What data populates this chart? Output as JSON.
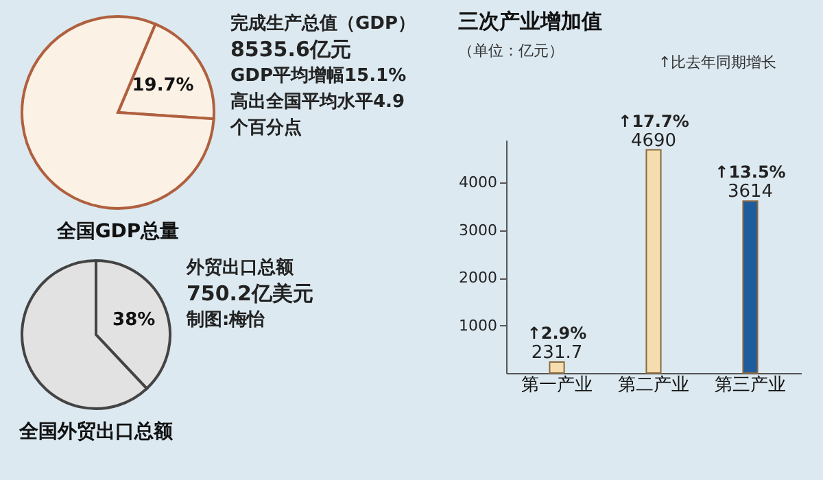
{
  "chart_data": [
    {
      "type": "pie",
      "title": "全国GDP总量",
      "categories": [
        null,
        null
      ],
      "values": [
        19.7,
        80.3
      ],
      "colors": [
        "#fbf1e4",
        "#fbf1e4"
      ],
      "value_labels": [
        "19.7%",
        null
      ],
      "annotations": [
        "完成生产总值（GDP）",
        "8535.6亿元",
        "GDP平均增幅15.1%高出全国平均水平4.9个百分点"
      ]
    },
    {
      "type": "pie",
      "title": "全国外贸出口总额",
      "categories": [
        null,
        null
      ],
      "values": [
        38,
        62
      ],
      "colors": [
        "#e2e2e2",
        "#e2e2e2"
      ],
      "value_labels": [
        "38%",
        null
      ],
      "annotations": [
        "外贸出口总额",
        "750.2亿美元",
        "制图:梅怡"
      ]
    },
    {
      "type": "bar",
      "title": "三次产业增加值",
      "subtitle": "（单位：亿元）",
      "categories": [
        "第一产业",
        "第二产业",
        "第三产业"
      ],
      "values": [
        231.7,
        4690,
        3614
      ],
      "colors": [
        "#f5ddb0",
        "#f5ddb0",
        "#1f5c9e"
      ],
      "data_labels": true,
      "ylim": [
        0,
        4900
      ],
      "yticks": [
        1000,
        2000,
        3000,
        4000
      ],
      "annotations": [
        "↑比去年同期增长",
        {
          "text": "↑2.9%",
          "x": "第一产业",
          "y": 231.7
        },
        {
          "text": "↑17.7%",
          "x": "第二产业",
          "y": 4690
        },
        {
          "text": "↑13.5%",
          "x": "第三产业",
          "y": 3614
        }
      ]
    }
  ]
}
